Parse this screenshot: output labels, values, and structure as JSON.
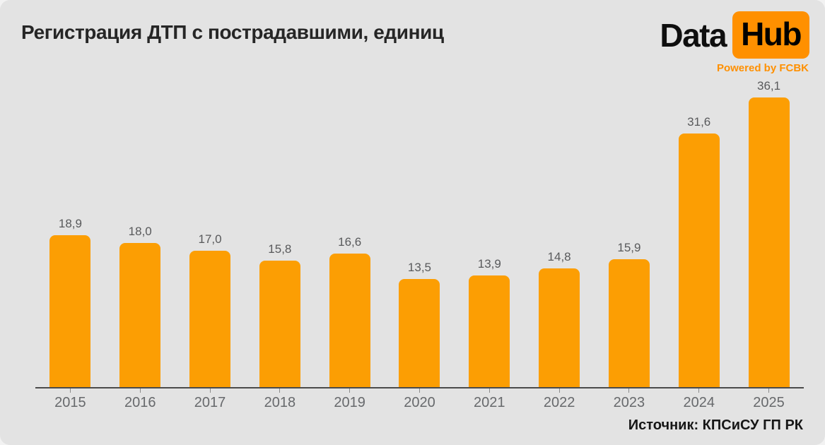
{
  "title": "Регистрация ДТП с пострадавшими, единиц",
  "logo": {
    "data_text": "Data",
    "hub_text": "Hub",
    "powered_text": "Powered by FCBK"
  },
  "source": "Источник: КПСиСУ ГП РК",
  "colors": {
    "background": "#e3e3e3",
    "bar": "#fc9e03",
    "logo_box": "#ff9000",
    "accent_text": "#ff9000",
    "title_text": "#262626",
    "value_label": "#58595b",
    "axis_line": "#4b4b4b",
    "year_label": "#67696c"
  },
  "chart_data": {
    "type": "bar",
    "title": "Регистрация ДТП с пострадавшими, единиц",
    "categories": [
      "2015",
      "2016",
      "2017",
      "2018",
      "2019",
      "2020",
      "2021",
      "2022",
      "2023",
      "2024",
      "2025"
    ],
    "values": [
      18.9,
      18.0,
      17.0,
      15.8,
      16.6,
      13.5,
      13.9,
      14.8,
      15.9,
      31.6,
      36.1
    ],
    "value_labels": [
      "18,9",
      "18,0",
      "17,0",
      "15,8",
      "16,6",
      "13,5",
      "13,9",
      "14,8",
      "15,9",
      "31,6",
      "36,1"
    ],
    "xlabel": "",
    "ylabel": "",
    "ylim": [
      0,
      36.1
    ],
    "grid": false,
    "legend": "none",
    "bar_color": "#fc9e03"
  }
}
